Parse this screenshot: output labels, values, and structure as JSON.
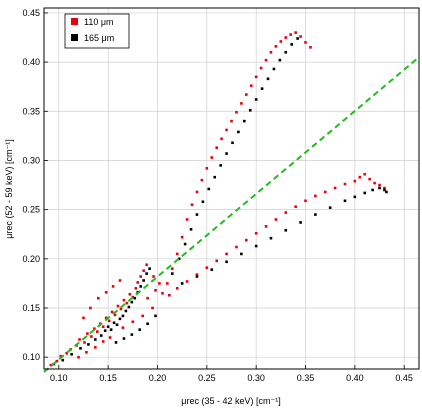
{
  "chart_data": {
    "type": "scatter",
    "xlabel": "μrec (35 - 42 keV) [cm⁻¹]",
    "ylabel": "μrec (52 - 59 keV) [cm⁻¹]",
    "xlim": [
      0.085,
      0.465
    ],
    "ylim": [
      0.088,
      0.455
    ],
    "x_ticks": [
      "0.10",
      "0.15",
      "0.20",
      "0.25",
      "0.30",
      "0.35",
      "0.40",
      "0.45"
    ],
    "x_tick_values": [
      0.1,
      0.15,
      0.2,
      0.25,
      0.3,
      0.35,
      0.4,
      0.45
    ],
    "y_ticks": [
      "0.10",
      "0.15",
      "0.20",
      "0.25",
      "0.30",
      "0.35",
      "0.40",
      "0.45"
    ],
    "y_tick_values": [
      0.1,
      0.15,
      0.2,
      0.25,
      0.3,
      0.35,
      0.4,
      0.45
    ],
    "grid": true,
    "legend_position": "top-left",
    "series": [
      {
        "name": "110 μm",
        "color": "#e8000b",
        "marker": "square",
        "points": [
          [
            0.092,
            0.092
          ],
          [
            0.098,
            0.096
          ],
          [
            0.102,
            0.101
          ],
          [
            0.108,
            0.104
          ],
          [
            0.112,
            0.108
          ],
          [
            0.118,
            0.112
          ],
          [
            0.121,
            0.118
          ],
          [
            0.126,
            0.115
          ],
          [
            0.129,
            0.124
          ],
          [
            0.133,
            0.121
          ],
          [
            0.136,
            0.129
          ],
          [
            0.139,
            0.126
          ],
          [
            0.142,
            0.134
          ],
          [
            0.145,
            0.131
          ],
          [
            0.148,
            0.14
          ],
          [
            0.151,
            0.137
          ],
          [
            0.154,
            0.146
          ],
          [
            0.157,
            0.143
          ],
          [
            0.16,
            0.152
          ],
          [
            0.163,
            0.149
          ],
          [
            0.166,
            0.158
          ],
          [
            0.169,
            0.155
          ],
          [
            0.172,
            0.164
          ],
          [
            0.175,
            0.161
          ],
          [
            0.178,
            0.17
          ],
          [
            0.18,
            0.176
          ],
          [
            0.183,
            0.182
          ],
          [
            0.186,
            0.188
          ],
          [
            0.189,
            0.194
          ],
          [
            0.125,
            0.14
          ],
          [
            0.132,
            0.15
          ],
          [
            0.14,
            0.16
          ],
          [
            0.148,
            0.166
          ],
          [
            0.155,
            0.172
          ],
          [
            0.162,
            0.178
          ],
          [
            0.12,
            0.1
          ],
          [
            0.128,
            0.105
          ],
          [
            0.137,
            0.11
          ],
          [
            0.145,
            0.116
          ],
          [
            0.152,
            0.12
          ],
          [
            0.165,
            0.13
          ],
          [
            0.175,
            0.136
          ],
          [
            0.185,
            0.142
          ],
          [
            0.195,
            0.15
          ],
          [
            0.205,
            0.165
          ],
          [
            0.21,
            0.175
          ],
          [
            0.215,
            0.19
          ],
          [
            0.22,
            0.205
          ],
          [
            0.225,
            0.222
          ],
          [
            0.23,
            0.24
          ],
          [
            0.235,
            0.255
          ],
          [
            0.24,
            0.268
          ],
          [
            0.245,
            0.28
          ],
          [
            0.25,
            0.292
          ],
          [
            0.255,
            0.303
          ],
          [
            0.26,
            0.313
          ],
          [
            0.265,
            0.322
          ],
          [
            0.27,
            0.331
          ],
          [
            0.275,
            0.34
          ],
          [
            0.28,
            0.349
          ],
          [
            0.285,
            0.358
          ],
          [
            0.29,
            0.367
          ],
          [
            0.295,
            0.376
          ],
          [
            0.3,
            0.385
          ],
          [
            0.305,
            0.394
          ],
          [
            0.31,
            0.402
          ],
          [
            0.315,
            0.41
          ],
          [
            0.32,
            0.416
          ],
          [
            0.325,
            0.421
          ],
          [
            0.33,
            0.425
          ],
          [
            0.335,
            0.428
          ],
          [
            0.34,
            0.43
          ],
          [
            0.345,
            0.426
          ],
          [
            0.35,
            0.42
          ],
          [
            0.355,
            0.415
          ],
          [
            0.212,
            0.163
          ],
          [
            0.22,
            0.17
          ],
          [
            0.23,
            0.177
          ],
          [
            0.24,
            0.184
          ],
          [
            0.25,
            0.191
          ],
          [
            0.26,
            0.198
          ],
          [
            0.27,
            0.205
          ],
          [
            0.28,
            0.212
          ],
          [
            0.29,
            0.219
          ],
          [
            0.3,
            0.226
          ],
          [
            0.31,
            0.233
          ],
          [
            0.32,
            0.24
          ],
          [
            0.33,
            0.247
          ],
          [
            0.34,
            0.253
          ],
          [
            0.35,
            0.259
          ],
          [
            0.36,
            0.264
          ],
          [
            0.37,
            0.268
          ],
          [
            0.38,
            0.272
          ],
          [
            0.39,
            0.276
          ],
          [
            0.4,
            0.279
          ],
          [
            0.405,
            0.283
          ],
          [
            0.41,
            0.286
          ],
          [
            0.415,
            0.281
          ],
          [
            0.42,
            0.277
          ],
          [
            0.425,
            0.275
          ],
          [
            0.43,
            0.272
          ],
          [
            0.196,
            0.182
          ],
          [
            0.202,
            0.175
          ],
          [
            0.198,
            0.168
          ],
          [
            0.19,
            0.16
          ]
        ]
      },
      {
        "name": "165 μm",
        "color": "#000000",
        "marker": "square",
        "points": [
          [
            0.095,
            0.093
          ],
          [
            0.104,
            0.097
          ],
          [
            0.113,
            0.103
          ],
          [
            0.122,
            0.109
          ],
          [
            0.13,
            0.113
          ],
          [
            0.137,
            0.118
          ],
          [
            0.143,
            0.122
          ],
          [
            0.147,
            0.127
          ],
          [
            0.15,
            0.131
          ],
          [
            0.153,
            0.128
          ],
          [
            0.156,
            0.135
          ],
          [
            0.159,
            0.133
          ],
          [
            0.162,
            0.139
          ],
          [
            0.165,
            0.142
          ],
          [
            0.168,
            0.147
          ],
          [
            0.171,
            0.151
          ],
          [
            0.174,
            0.156
          ],
          [
            0.177,
            0.16
          ],
          [
            0.18,
            0.166
          ],
          [
            0.183,
            0.172
          ],
          [
            0.186,
            0.178
          ],
          [
            0.189,
            0.185
          ],
          [
            0.192,
            0.19
          ],
          [
            0.158,
            0.115
          ],
          [
            0.166,
            0.119
          ],
          [
            0.174,
            0.123
          ],
          [
            0.182,
            0.128
          ],
          [
            0.19,
            0.134
          ],
          [
            0.198,
            0.142
          ],
          [
            0.215,
            0.185
          ],
          [
            0.222,
            0.2
          ],
          [
            0.228,
            0.215
          ],
          [
            0.234,
            0.23
          ],
          [
            0.24,
            0.245
          ],
          [
            0.246,
            0.258
          ],
          [
            0.252,
            0.271
          ],
          [
            0.258,
            0.283
          ],
          [
            0.264,
            0.295
          ],
          [
            0.27,
            0.307
          ],
          [
            0.276,
            0.318
          ],
          [
            0.282,
            0.329
          ],
          [
            0.288,
            0.34
          ],
          [
            0.294,
            0.351
          ],
          [
            0.3,
            0.362
          ],
          [
            0.306,
            0.373
          ],
          [
            0.312,
            0.383
          ],
          [
            0.318,
            0.393
          ],
          [
            0.324,
            0.402
          ],
          [
            0.33,
            0.41
          ],
          [
            0.336,
            0.418
          ],
          [
            0.342,
            0.424
          ],
          [
            0.225,
            0.175
          ],
          [
            0.24,
            0.182
          ],
          [
            0.255,
            0.189
          ],
          [
            0.27,
            0.197
          ],
          [
            0.285,
            0.205
          ],
          [
            0.3,
            0.213
          ],
          [
            0.315,
            0.221
          ],
          [
            0.33,
            0.229
          ],
          [
            0.345,
            0.237
          ],
          [
            0.36,
            0.245
          ],
          [
            0.375,
            0.252
          ],
          [
            0.39,
            0.259
          ],
          [
            0.4,
            0.263
          ],
          [
            0.41,
            0.267
          ],
          [
            0.418,
            0.27
          ],
          [
            0.425,
            0.272
          ],
          [
            0.43,
            0.27
          ],
          [
            0.432,
            0.268
          ]
        ]
      }
    ],
    "reference_line": {
      "style": "dashed",
      "color": "#22bb22",
      "points": [
        [
          0.085,
          0.085
        ],
        [
          0.465,
          0.405
        ]
      ]
    }
  }
}
